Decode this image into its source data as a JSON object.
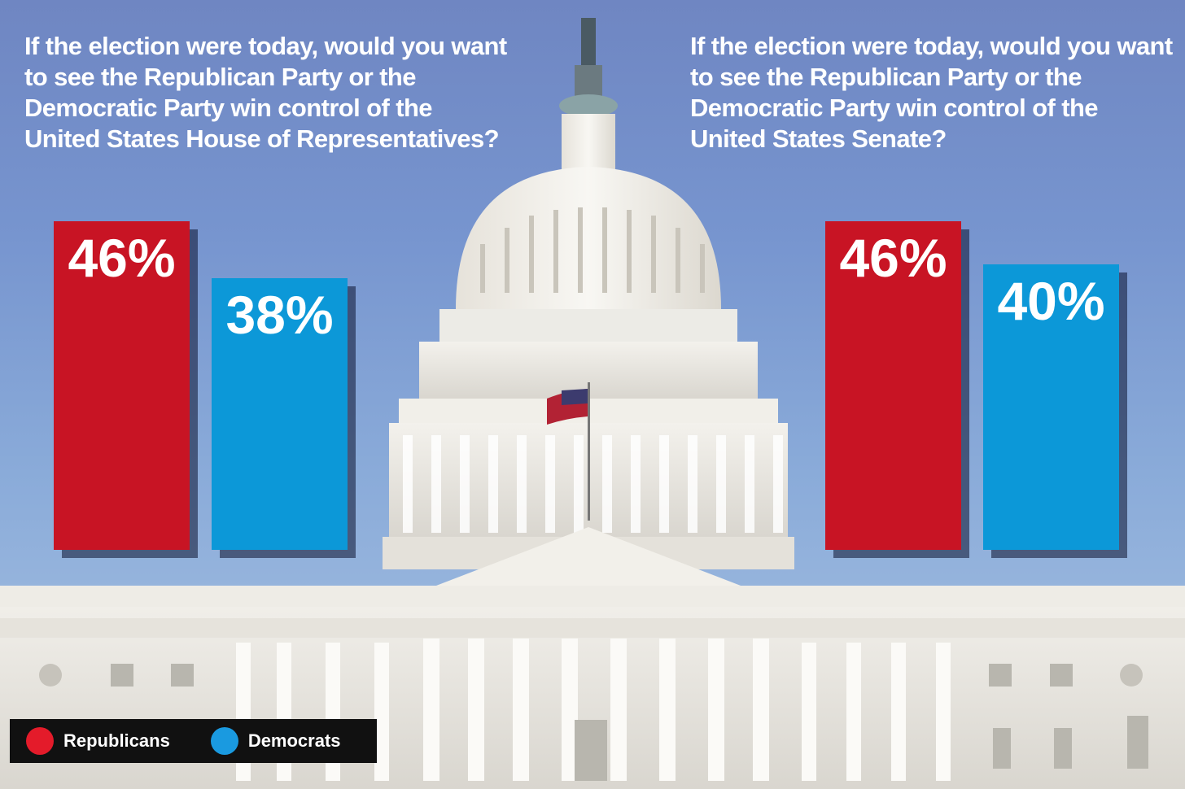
{
  "colors": {
    "republican": "#c81424",
    "democrat": "#0c98d8"
  },
  "chart_data": [
    {
      "type": "bar",
      "title": "If the election were today, would you want to see the Republican Party or the Democratic Party win control of the United States House of Representatives?",
      "categories": [
        "Republicans",
        "Democrats"
      ],
      "values": [
        46,
        38
      ],
      "value_labels": [
        "46%",
        "38%"
      ],
      "ylim": [
        0,
        46
      ]
    },
    {
      "type": "bar",
      "title": "If the election were today, would you want to see the Republican Party or the Democratic Party win control of the United States Senate?",
      "categories": [
        "Republicans",
        "Democrats"
      ],
      "values": [
        46,
        40
      ],
      "value_labels": [
        "46%",
        "40%"
      ],
      "ylim": [
        0,
        46
      ]
    }
  ],
  "legend": {
    "items": [
      {
        "label": "Republicans",
        "color": "#e41b2a"
      },
      {
        "label": "Democrats",
        "color": "#1a9ae0"
      }
    ]
  }
}
